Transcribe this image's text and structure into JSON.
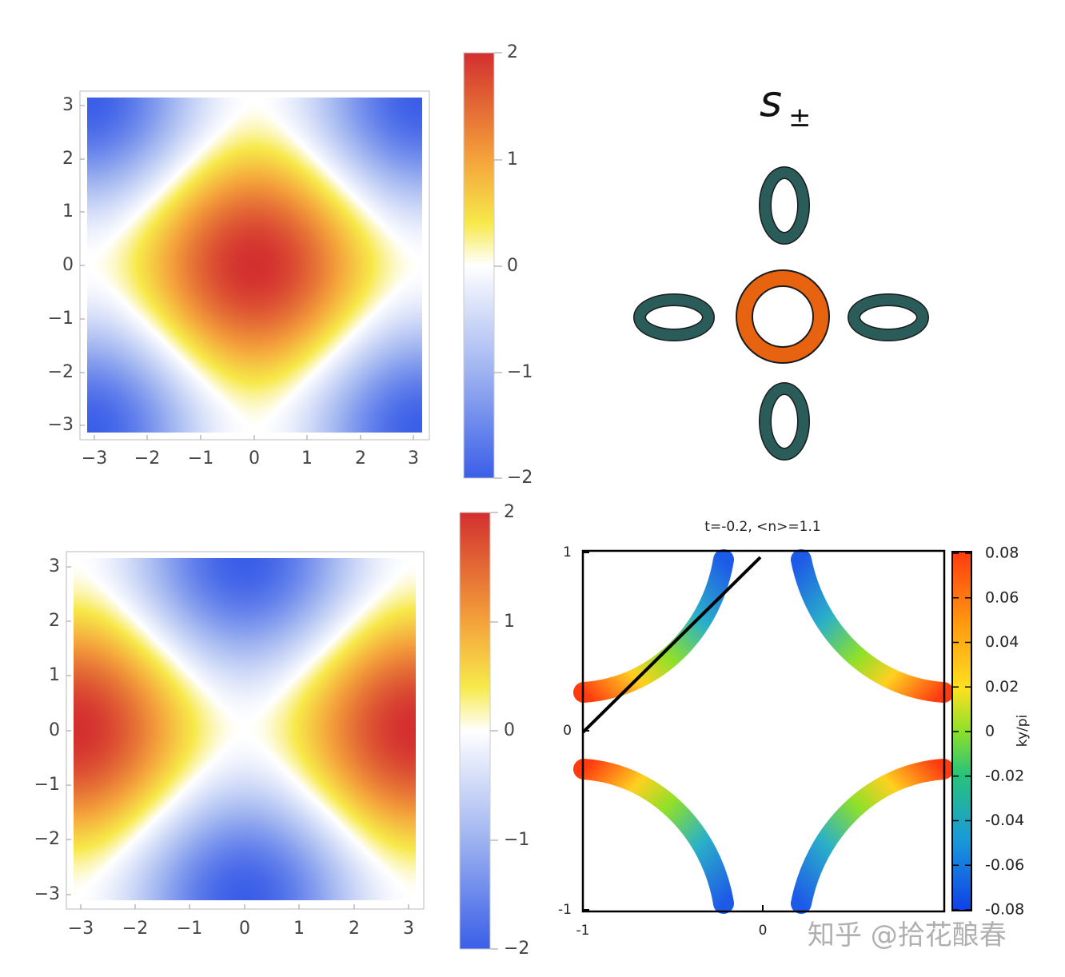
{
  "chart_data": [
    {
      "type": "heatmap",
      "function": "cos(kx)+cos(ky)",
      "xlim": [
        -3.14,
        3.14
      ],
      "ylim": [
        -3.14,
        3.14
      ],
      "xticks": [
        "−3",
        "−2",
        "−1",
        "0",
        "1",
        "2",
        "3"
      ],
      "yticks": [
        "3",
        "2",
        "1",
        "0",
        "−1",
        "−2",
        "−3"
      ],
      "colorbar": {
        "range": [
          -2,
          2
        ],
        "ticks": [
          "2",
          "1",
          "0",
          "−1",
          "−2"
        ]
      },
      "colors": {
        "low": "#3a5ee8",
        "mid": "#ffffff",
        "high_mid": "#f7e94a",
        "high": "#d32f2f"
      }
    },
    {
      "type": "heatmap",
      "function": "cos(ky)-cos(kx)",
      "xlim": [
        -3.14,
        3.14
      ],
      "ylim": [
        -3.14,
        3.14
      ],
      "xticks": [
        "−3",
        "−2",
        "−1",
        "0",
        "1",
        "2",
        "3"
      ],
      "yticks": [
        "3",
        "2",
        "1",
        "0",
        "−1",
        "−2",
        "−3"
      ],
      "colorbar": {
        "range": [
          -2,
          2
        ],
        "ticks": [
          "2",
          "1",
          "0",
          "−1",
          "−2"
        ]
      },
      "colors": {
        "low": "#3a5ee8",
        "mid": "#ffffff",
        "high_mid": "#f7e94a",
        "high": "#d32f2f"
      }
    },
    {
      "type": "scatter",
      "title": "t=-0.2, <n>=1.1",
      "xlim": [
        -1,
        1
      ],
      "ylim": [
        -1,
        1
      ],
      "xticks": [
        "-1",
        "0"
      ],
      "yticks": [
        "1",
        "0",
        "-1"
      ],
      "colorbar": {
        "label": "ky/pi",
        "range": [
          -0.08,
          0.08
        ],
        "ticks": [
          "0.08",
          "0.06",
          "0.04",
          "0.02",
          "0",
          "-0.02",
          "-0.04",
          "-0.06",
          "-0.08"
        ]
      },
      "fermi_arcs": [
        {
          "quadrant": "top-left",
          "x": [
            -0.22,
            -0.35,
            -0.55,
            -0.75,
            -1.0
          ],
          "y": [
            1.0,
            0.75,
            0.5,
            0.32,
            0.22
          ]
        },
        {
          "quadrant": "top-right",
          "x": [
            0.22,
            0.35,
            0.55,
            0.75,
            1.0
          ],
          "y": [
            1.0,
            0.75,
            0.5,
            0.32,
            0.22
          ]
        },
        {
          "quadrant": "bottom-left",
          "x": [
            -0.22,
            -0.35,
            -0.55,
            -0.75,
            -1.0
          ],
          "y": [
            -1.0,
            -0.75,
            -0.5,
            -0.32,
            -0.22
          ]
        },
        {
          "quadrant": "bottom-right",
          "x": [
            0.22,
            0.35,
            0.55,
            0.75,
            1.0
          ],
          "y": [
            -1.0,
            -0.75,
            -0.5,
            -0.32,
            -0.22
          ]
        }
      ],
      "line": {
        "x": [
          -1.0,
          0.0
        ],
        "y": [
          0.0,
          1.0
        ],
        "color": "#000000"
      }
    }
  ],
  "diagram": {
    "label": "s",
    "subscript": "±",
    "center_ring_color": "#e8630f",
    "outer_ring_color": "#2a5d5a",
    "pockets": [
      "center",
      "top",
      "bottom",
      "left",
      "right"
    ]
  },
  "watermark": "知乎 @拾花酿春"
}
